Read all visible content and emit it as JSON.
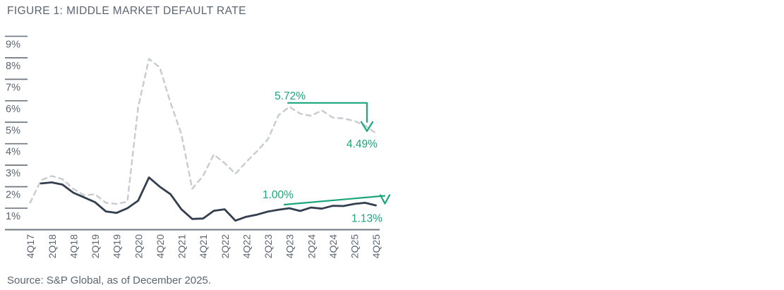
{
  "figure": {
    "title": "FIGURE 1: MIDDLE MARKET DEFAULT RATE",
    "source": "Source: S&P Global, as of December 2025."
  },
  "colors": {
    "accent_green": "#1AA57C",
    "solid_line": "#333F4E",
    "dashed_line": "#C9CDD2",
    "axis": "#6E7780",
    "label_text": "#5B6572",
    "background": "#FFFFFF"
  },
  "chart_data": {
    "type": "line",
    "title": "FIGURE 1: MIDDLE MARKET DEFAULT RATE",
    "x": [
      "4Q17",
      "1Q18",
      "2Q18",
      "3Q18",
      "4Q18",
      "1Q19",
      "2Q19",
      "3Q19",
      "4Q19",
      "1Q20",
      "2Q20",
      "3Q20",
      "4Q20",
      "1Q21",
      "2Q21",
      "3Q21",
      "4Q21",
      "1Q22",
      "2Q22",
      "3Q22",
      "4Q22",
      "1Q23",
      "2Q23",
      "3Q23",
      "4Q23",
      "1Q24",
      "2Q24",
      "3Q24",
      "4Q24",
      "1Q25",
      "2Q25",
      "3Q25",
      "4Q25"
    ],
    "x_tick_labels": [
      "4Q17",
      "2Q18",
      "4Q18",
      "2Q19",
      "4Q19",
      "2Q20",
      "4Q20",
      "2Q21",
      "4Q21",
      "2Q22",
      "4Q22",
      "2Q23",
      "4Q23",
      "2Q24",
      "4Q24",
      "2Q25",
      "4Q25"
    ],
    "y_tick_labels": [
      "1%",
      "2%",
      "3%",
      "4%",
      "5%",
      "6%",
      "7%",
      "8%",
      "9%"
    ],
    "ylim": [
      0,
      9.2
    ],
    "grid": false,
    "legend_position": "none",
    "series": [
      {
        "name": "dashed-gray-line",
        "style": "dashed",
        "color": "#C9CDD2",
        "values": [
          1.25,
          2.3,
          2.5,
          2.35,
          1.9,
          1.6,
          1.65,
          1.25,
          1.2,
          1.3,
          5.7,
          7.95,
          7.55,
          5.9,
          4.45,
          1.9,
          2.5,
          3.5,
          3.1,
          2.6,
          3.15,
          3.65,
          4.2,
          5.33,
          5.72,
          5.4,
          5.3,
          5.55,
          5.22,
          5.18,
          5.06,
          4.85,
          4.49
        ]
      },
      {
        "name": "solid-dark-line",
        "style": "solid",
        "color": "#333F4E",
        "values": [
          null,
          2.15,
          2.2,
          2.1,
          1.72,
          1.5,
          1.28,
          0.85,
          0.78,
          1.0,
          1.35,
          2.43,
          2.0,
          1.65,
          0.95,
          0.5,
          0.52,
          0.88,
          0.95,
          0.42,
          0.6,
          0.7,
          0.84,
          0.93,
          1.0,
          0.87,
          1.03,
          0.98,
          1.11,
          1.1,
          1.2,
          1.25,
          1.13
        ]
      }
    ],
    "annotations": [
      {
        "text": "5.72%",
        "series": "dashed-gray-line",
        "quarter": "4Q23",
        "value": 5.72
      },
      {
        "text": "4.49%",
        "series": "dashed-gray-line",
        "quarter": "4Q25",
        "value": 4.49
      },
      {
        "text": "1.00%",
        "series": "solid-dark-line",
        "quarter": "4Q23",
        "value": 1.0
      },
      {
        "text": "1.13%",
        "series": "solid-dark-line",
        "quarter": "4Q25",
        "value": 1.13
      }
    ]
  }
}
